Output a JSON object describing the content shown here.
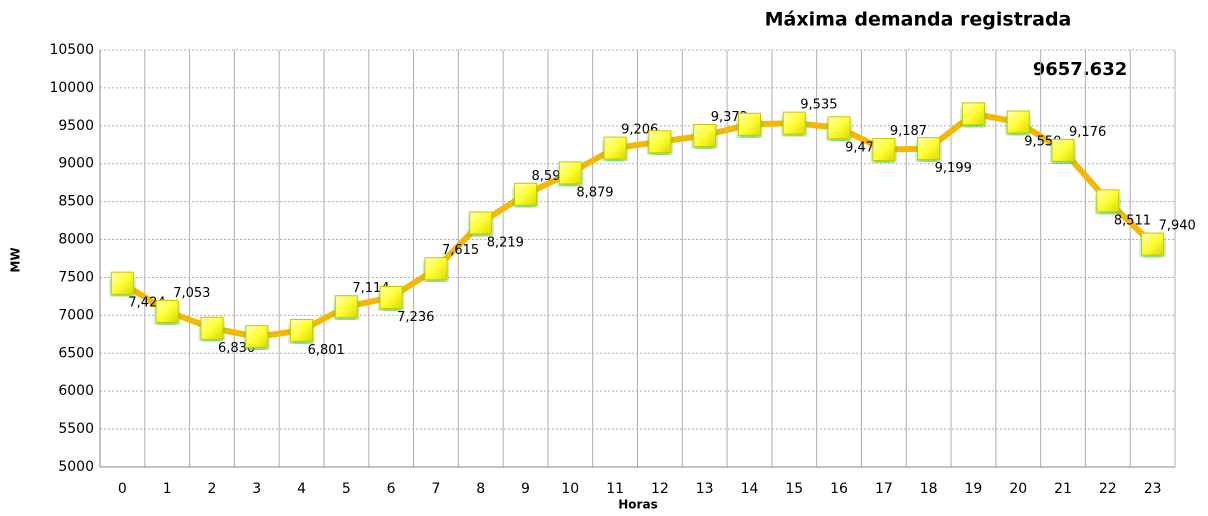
{
  "chart_data": {
    "type": "line",
    "title": "Máxima demanda registrada",
    "annotation": "9657.632",
    "x_label": "Horas",
    "y_label": "MW",
    "categories": [
      "0",
      "1",
      "2",
      "3",
      "4",
      "5",
      "6",
      "7",
      "8",
      "9",
      "10",
      "11",
      "12",
      "13",
      "14",
      "15",
      "16",
      "17",
      "18",
      "19",
      "20",
      "21",
      "22",
      "23"
    ],
    "series": [
      {
        "name": "MW",
        "color": "#f5b800",
        "marker_color": "#ffff33",
        "values": [
          7424,
          7053,
          6830,
          6720,
          6801,
          7114,
          7236,
          7615,
          8219,
          8597,
          8879,
          9206,
          9290,
          9372,
          9520,
          9535,
          9474,
          9187,
          9199,
          9657.632,
          9550,
          9176,
          8511,
          7940
        ],
        "value_labels": [
          "7,424",
          "7,053",
          "6,830",
          null,
          "6,801",
          "7,114",
          "7,236",
          "7,615",
          "8,219",
          "8,597",
          "8,879",
          "9,206",
          null,
          "9,372",
          null,
          "9,535",
          "9,474",
          "9,187",
          "9,199",
          null,
          "9,550",
          "9,176",
          "8,511",
          "7,940"
        ]
      }
    ],
    "ylim": [
      5000,
      10500
    ],
    "yticks": [
      5000,
      5500,
      6000,
      6500,
      7000,
      7500,
      8000,
      8500,
      9000,
      9500,
      10000,
      10500
    ],
    "grid": true
  }
}
